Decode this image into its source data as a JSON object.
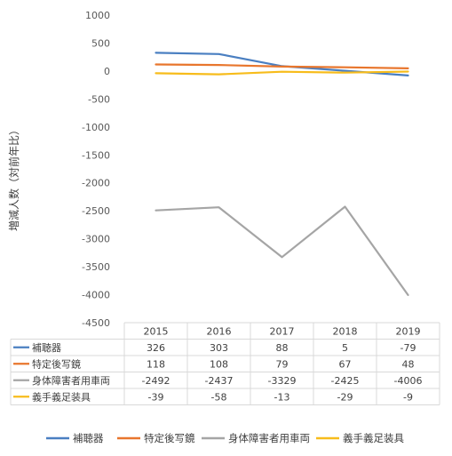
{
  "chart_data": {
    "type": "line",
    "title": "",
    "ylabel": "増減人数（対前年比）",
    "xlabel": "",
    "categories": [
      "2015",
      "2016",
      "2017",
      "2018",
      "2019"
    ],
    "ylim": [
      -4500,
      1000
    ],
    "yticks": [
      1000,
      500,
      0,
      -500,
      -1000,
      -1500,
      -2000,
      -2500,
      -3000,
      -3500,
      -4000,
      -4500
    ],
    "grid": false,
    "legend_position": "bottom",
    "data_table": true,
    "series": [
      {
        "name": "補聴器",
        "color": "#4a7fc1",
        "values": [
          326,
          303,
          88,
          5,
          -79
        ]
      },
      {
        "name": "特定後写鏡",
        "color": "#e8762d",
        "values": [
          118,
          108,
          79,
          67,
          48
        ]
      },
      {
        "name": "身体障害者用車両",
        "color": "#a5a5a5",
        "values": [
          -2492,
          -2437,
          -3329,
          -2425,
          -4006
        ]
      },
      {
        "name": "義手義足装具",
        "color": "#f7bc1b",
        "values": [
          -39,
          -58,
          -13,
          -29,
          -9
        ]
      }
    ]
  }
}
